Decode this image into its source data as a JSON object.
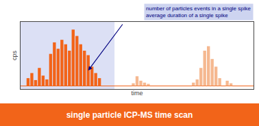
{
  "chart_data": {
    "type": "bar",
    "title": "single particle ICP-MS time scan",
    "title_color": "#ffffff",
    "title_bg": "#f26419",
    "x_label": "time",
    "y_label": "cps",
    "xlim": [
      0,
      62
    ],
    "ylim": [
      -0.05,
      1.0
    ],
    "tick_labels": false,
    "grid": false,
    "baseline_color": "#f26419",
    "span": {
      "x": [
        0,
        25
      ],
      "color": "#dce0f5"
    },
    "series": [
      {
        "color": "#f26419",
        "x": [
          2,
          3,
          4,
          5,
          6,
          7,
          8,
          9,
          10,
          11,
          12,
          13,
          14,
          15,
          16,
          17,
          18,
          19,
          20,
          21
        ],
        "values": [
          0.12,
          0.2,
          0.09,
          0.28,
          0.16,
          0.1,
          0.5,
          0.68,
          0.58,
          0.72,
          0.65,
          0.55,
          0.88,
          0.78,
          0.65,
          0.55,
          0.48,
          0.3,
          0.2,
          0.12
        ]
      },
      {
        "color": "#f5b890",
        "x": [
          30,
          31,
          32,
          33,
          34
        ],
        "values": [
          0.04,
          0.15,
          0.08,
          0.05,
          0.03
        ]
      },
      {
        "color": "#f5b890",
        "x": [
          46,
          47,
          48,
          49,
          50,
          51,
          52,
          53
        ],
        "values": [
          0.05,
          0.1,
          0.28,
          0.55,
          0.62,
          0.42,
          0.3,
          0.12
        ]
      },
      {
        "color": "#f5b890",
        "x": [
          55,
          56
        ],
        "values": [
          0.08,
          0.04
        ]
      }
    ],
    "annotation": {
      "text": [
        "number of particles events in a single spike",
        "average duration of a single spike"
      ],
      "color": "#cdd4f0",
      "font_color": "navy"
    }
  }
}
